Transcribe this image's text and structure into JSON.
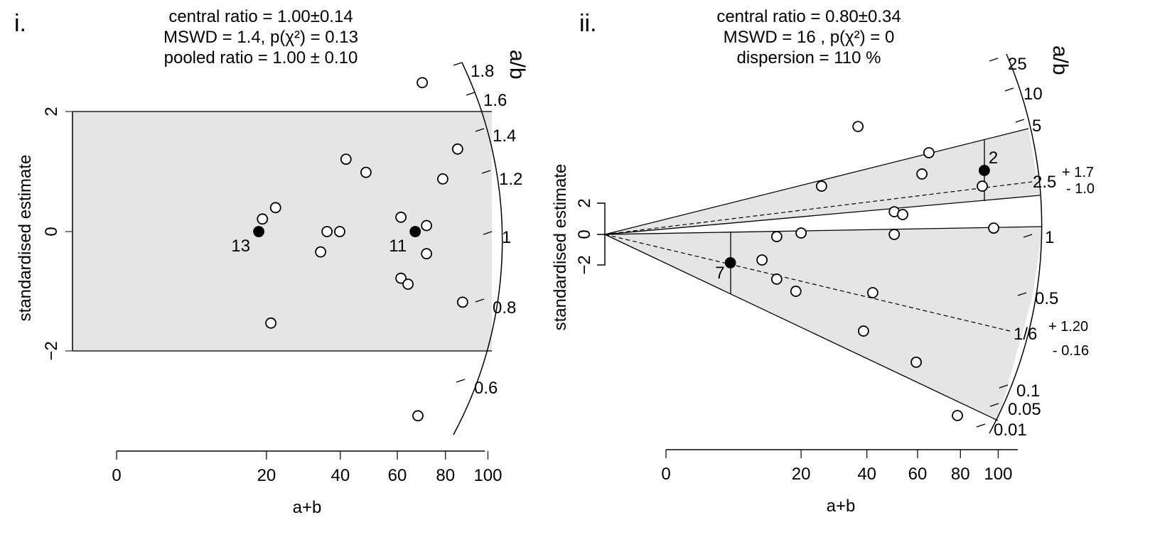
{
  "chart_data": [
    {
      "type": "scatter",
      "subtype": "radial-plot",
      "panel_label": "i.",
      "title_lines": [
        "central ratio = 1.00±0.14",
        "MSWD = 1.4, p(χ²) = 0.13",
        "pooled ratio = 1.00 ± 0.10"
      ],
      "xlabel": "a+b",
      "ylabel": "standardised estimate",
      "radial_label": "a/b",
      "x_ticks": [
        0,
        20,
        40,
        60,
        80,
        100
      ],
      "y_ticks": [
        -2,
        0,
        2
      ],
      "ylim_band": [
        -2,
        2
      ],
      "radial_ticks": [
        "1.8",
        "1.6",
        "1.4",
        "1.2",
        "1",
        "0.8",
        "0.6"
      ],
      "points": [
        {
          "x": 70.0,
          "z": 2.49
        },
        {
          "x": 41.8,
          "z": 1.21
        },
        {
          "x": 48.5,
          "z": 0.99
        },
        {
          "x": 85.5,
          "z": 1.38
        },
        {
          "x": 78.8,
          "z": 0.88
        },
        {
          "x": 22.1,
          "z": 0.4
        },
        {
          "x": 19.1,
          "z": 0.21
        },
        {
          "x": 18.3,
          "z": 0.0,
          "filled": true,
          "label": "13"
        },
        {
          "x": 35.9,
          "z": 0.0
        },
        {
          "x": 39.8,
          "z": 0.0
        },
        {
          "x": 34.0,
          "z": -0.34
        },
        {
          "x": 61.4,
          "z": 0.24
        },
        {
          "x": 71.8,
          "z": 0.1
        },
        {
          "x": 67.1,
          "z": 0.0,
          "filled": true,
          "label": "11"
        },
        {
          "x": 71.8,
          "z": -0.37
        },
        {
          "x": 61.4,
          "z": -0.78
        },
        {
          "x": 64.2,
          "z": -0.88
        },
        {
          "x": 87.8,
          "z": -1.18
        },
        {
          "x": 21.0,
          "z": -1.53
        },
        {
          "x": 68.2,
          "z": -3.08
        }
      ]
    },
    {
      "type": "scatter",
      "subtype": "radial-plot",
      "panel_label": "ii.",
      "title_lines": [
        "central ratio = 0.80±0.34",
        "MSWD = 16 , p(χ²) = 0",
        "dispersion = 110 %"
      ],
      "xlabel": "a+b",
      "ylabel": "standardised estimate",
      "radial_label": "a/b",
      "x_ticks": [
        0,
        20,
        40,
        60,
        80,
        100
      ],
      "y_ticks": [
        -2,
        0,
        2
      ],
      "radial_ticks": [
        "25",
        "10",
        "5",
        "1",
        "0.5",
        "0.1",
        "0.05",
        "0.01"
      ],
      "components": [
        {
          "ratio": "2.5",
          "plus": "+ 1.7",
          "minus": "- 1.0",
          "label": "2"
        },
        {
          "ratio": "1/6",
          "plus": "+ 1.20",
          "minus": "- 0.16",
          "label": "7"
        }
      ],
      "points": [
        {
          "x": 36.9,
          "z": 7.0
        },
        {
          "x": 65.0,
          "z": 5.3
        },
        {
          "x": 25.5,
          "z": 3.13
        },
        {
          "x": 61.9,
          "z": 3.92
        },
        {
          "x": 92.4,
          "z": 4.15,
          "filled": true,
          "label": "2"
        },
        {
          "x": 91.3,
          "z": 3.13
        },
        {
          "x": 50.3,
          "z": 1.47
        },
        {
          "x": 53.7,
          "z": 1.29
        },
        {
          "x": 97.5,
          "z": 0.41
        },
        {
          "x": 20.0,
          "z": 0.09
        },
        {
          "x": 14.3,
          "z": -0.14
        },
        {
          "x": 50.3,
          "z": 0.0
        },
        {
          "x": 6.0,
          "z": -1.84,
          "filled": true,
          "label": "7"
        },
        {
          "x": 11.3,
          "z": -1.66
        },
        {
          "x": 14.3,
          "z": -2.9
        },
        {
          "x": 18.7,
          "z": -3.69
        },
        {
          "x": 42.1,
          "z": -3.78
        },
        {
          "x": 38.8,
          "z": -6.27
        },
        {
          "x": 59.4,
          "z": -8.29
        },
        {
          "x": 78.5,
          "z": -11.75
        }
      ]
    }
  ]
}
